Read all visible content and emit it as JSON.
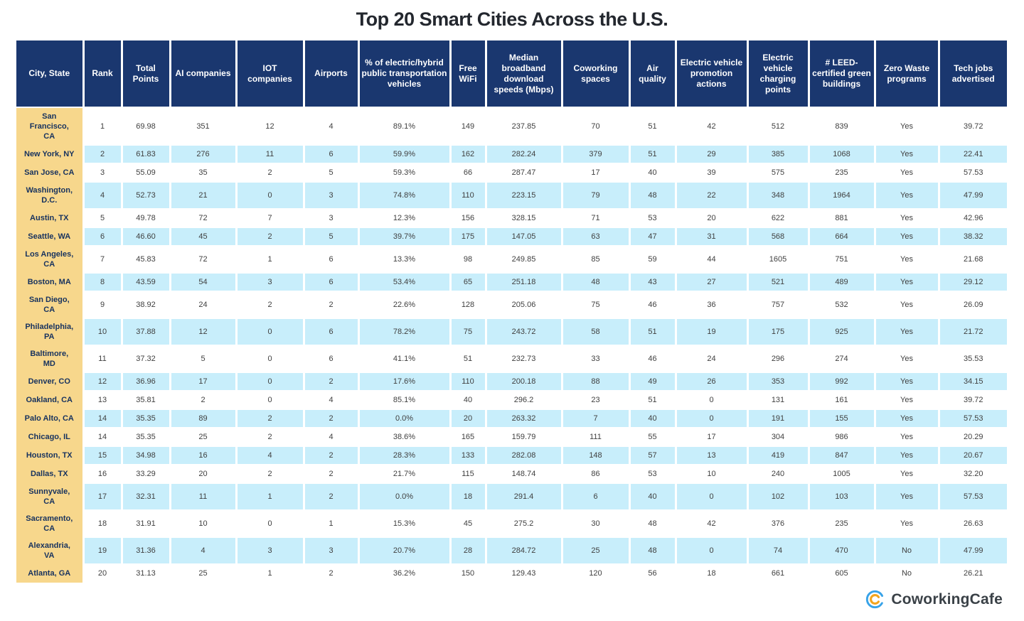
{
  "title": "Top 20 Smart Cities Across the U.S.",
  "chart_data": {
    "type": "table",
    "title": "Top 20 Smart Cities Across the U.S.",
    "columns": [
      "City, State",
      "Rank",
      "Total Points",
      "AI companies",
      "IOT companies",
      "Airports",
      "% of electric/hybrid public transportation vehicles",
      "Free WiFi",
      "Median broadband download speeds (Mbps)",
      "Coworking spaces",
      "Air quality",
      "Electric vehicle promotion actions",
      "Electric vehicle charging points",
      "# LEED-certified green buildings",
      "Zero Waste programs",
      "Tech jobs advertised"
    ],
    "rows": [
      [
        "San Francisco, CA",
        "1",
        "69.98",
        "351",
        "12",
        "4",
        "89.1%",
        "149",
        "237.85",
        "70",
        "51",
        "42",
        "512",
        "839",
        "Yes",
        "39.72"
      ],
      [
        "New York, NY",
        "2",
        "61.83",
        "276",
        "11",
        "6",
        "59.9%",
        "162",
        "282.24",
        "379",
        "51",
        "29",
        "385",
        "1068",
        "Yes",
        "22.41"
      ],
      [
        "San Jose, CA",
        "3",
        "55.09",
        "35",
        "2",
        "5",
        "59.3%",
        "66",
        "287.47",
        "17",
        "40",
        "39",
        "575",
        "235",
        "Yes",
        "57.53"
      ],
      [
        "Washington, D.C.",
        "4",
        "52.73",
        "21",
        "0",
        "3",
        "74.8%",
        "110",
        "223.15",
        "79",
        "48",
        "22",
        "348",
        "1964",
        "Yes",
        "47.99"
      ],
      [
        "Austin, TX",
        "5",
        "49.78",
        "72",
        "7",
        "3",
        "12.3%",
        "156",
        "328.15",
        "71",
        "53",
        "20",
        "622",
        "881",
        "Yes",
        "42.96"
      ],
      [
        "Seattle, WA",
        "6",
        "46.60",
        "45",
        "2",
        "5",
        "39.7%",
        "175",
        "147.05",
        "63",
        "47",
        "31",
        "568",
        "664",
        "Yes",
        "38.32"
      ],
      [
        "Los Angeles, CA",
        "7",
        "45.83",
        "72",
        "1",
        "6",
        "13.3%",
        "98",
        "249.85",
        "85",
        "59",
        "44",
        "1605",
        "751",
        "Yes",
        "21.68"
      ],
      [
        "Boston, MA",
        "8",
        "43.59",
        "54",
        "3",
        "6",
        "53.4%",
        "65",
        "251.18",
        "48",
        "43",
        "27",
        "521",
        "489",
        "Yes",
        "29.12"
      ],
      [
        "San Diego, CA",
        "9",
        "38.92",
        "24",
        "2",
        "2",
        "22.6%",
        "128",
        "205.06",
        "75",
        "46",
        "36",
        "757",
        "532",
        "Yes",
        "26.09"
      ],
      [
        "Philadelphia, PA",
        "10",
        "37.88",
        "12",
        "0",
        "6",
        "78.2%",
        "75",
        "243.72",
        "58",
        "51",
        "19",
        "175",
        "925",
        "Yes",
        "21.72"
      ],
      [
        "Baltimore, MD",
        "11",
        "37.32",
        "5",
        "0",
        "6",
        "41.1%",
        "51",
        "232.73",
        "33",
        "46",
        "24",
        "296",
        "274",
        "Yes",
        "35.53"
      ],
      [
        "Denver, CO",
        "12",
        "36.96",
        "17",
        "0",
        "2",
        "17.6%",
        "110",
        "200.18",
        "88",
        "49",
        "26",
        "353",
        "992",
        "Yes",
        "34.15"
      ],
      [
        "Oakland, CA",
        "13",
        "35.81",
        "2",
        "0",
        "4",
        "85.1%",
        "40",
        "296.2",
        "23",
        "51",
        "0",
        "131",
        "161",
        "Yes",
        "39.72"
      ],
      [
        "Palo Alto, CA",
        "14",
        "35.35",
        "89",
        "2",
        "2",
        "0.0%",
        "20",
        "263.32",
        "7",
        "40",
        "0",
        "191",
        "155",
        "Yes",
        "57.53"
      ],
      [
        "Chicago, IL",
        "14",
        "35.35",
        "25",
        "2",
        "4",
        "38.6%",
        "165",
        "159.79",
        "111",
        "55",
        "17",
        "304",
        "986",
        "Yes",
        "20.29"
      ],
      [
        "Houston, TX",
        "15",
        "34.98",
        "16",
        "4",
        "2",
        "28.3%",
        "133",
        "282.08",
        "148",
        "57",
        "13",
        "419",
        "847",
        "Yes",
        "20.67"
      ],
      [
        "Dallas, TX",
        "16",
        "33.29",
        "20",
        "2",
        "2",
        "21.7%",
        "115",
        "148.74",
        "86",
        "53",
        "10",
        "240",
        "1005",
        "Yes",
        "32.20"
      ],
      [
        "Sunnyvale, CA",
        "17",
        "32.31",
        "11",
        "1",
        "2",
        "0.0%",
        "18",
        "291.4",
        "6",
        "40",
        "0",
        "102",
        "103",
        "Yes",
        "57.53"
      ],
      [
        "Sacramento, CA",
        "18",
        "31.91",
        "10",
        "0",
        "1",
        "15.3%",
        "45",
        "275.2",
        "30",
        "48",
        "42",
        "376",
        "235",
        "Yes",
        "26.63"
      ],
      [
        "Alexandria, VA",
        "19",
        "31.36",
        "4",
        "3",
        "3",
        "20.7%",
        "28",
        "284.72",
        "25",
        "48",
        "0",
        "74",
        "470",
        "No",
        "47.99"
      ],
      [
        "Atlanta, GA",
        "20",
        "31.13",
        "25",
        "1",
        "2",
        "36.2%",
        "150",
        "129.43",
        "120",
        "56",
        "18",
        "661",
        "605",
        "No",
        "26.21"
      ]
    ]
  },
  "footer": {
    "logo_text": "CoworkingCafe"
  },
  "colors": {
    "header_bg": "#1a376f",
    "header_text": "#ffffff",
    "city_column_bg": "#f7d78c",
    "city_text": "#17325e",
    "stripe_row_bg": "#c8eefb",
    "plain_row_bg": "#ffffff",
    "cell_text": "#404040",
    "title_text": "#23272e",
    "logo_blue": "#39a3e8",
    "logo_orange": "#f4a51d",
    "logo_text_color": "#3a4147"
  }
}
